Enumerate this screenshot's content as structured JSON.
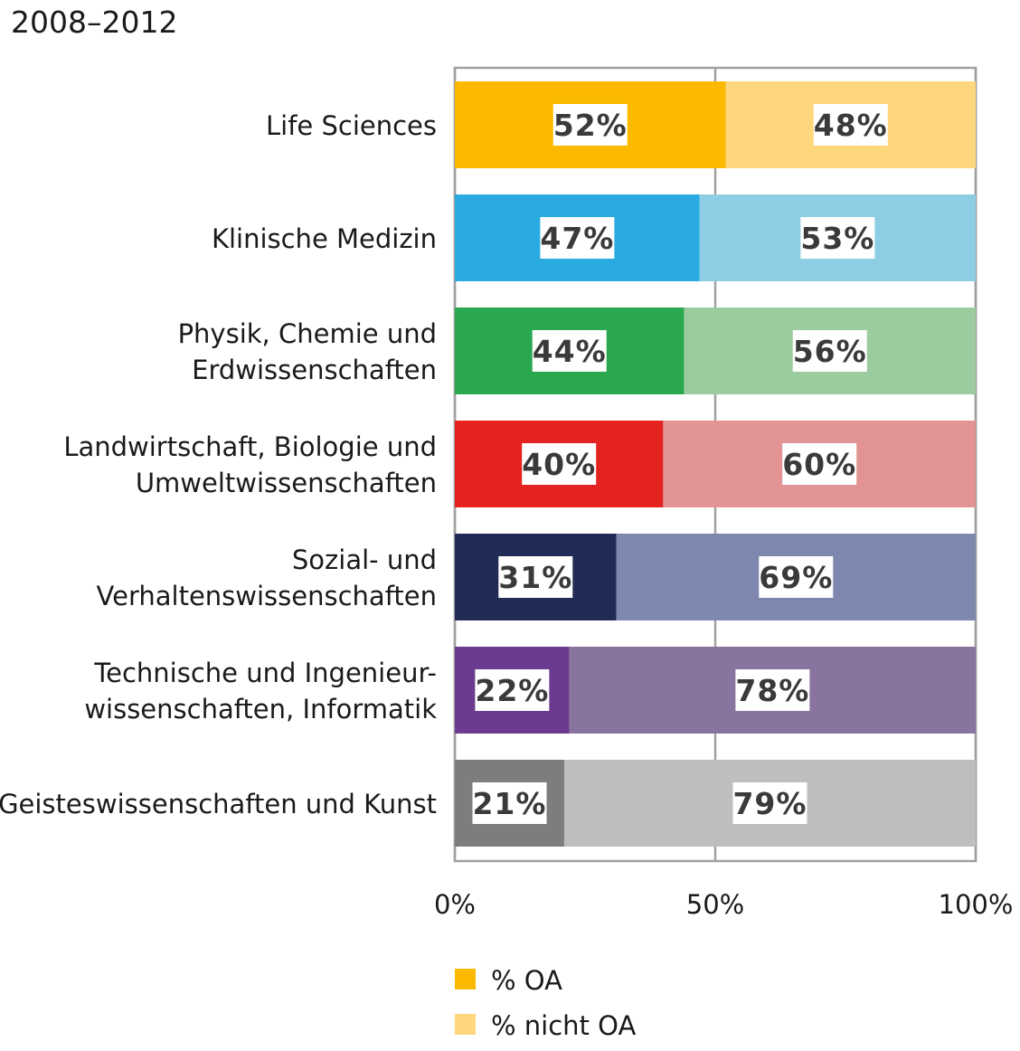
{
  "chart_data": {
    "type": "bar",
    "orientation": "horizontal",
    "stacked": true,
    "title": "2008–2012",
    "categories": [
      [
        "Life Sciences"
      ],
      [
        "Klinische Medizin"
      ],
      [
        "Physik, Chemie und",
        "Erdwissenschaften"
      ],
      [
        "Landwirtschaft, Biologie und",
        "Umweltwissenschaften"
      ],
      [
        "Sozial- und",
        "Verhaltenswissenschaften"
      ],
      [
        "Technische und Ingenieur-",
        "wissenschaften, Informatik"
      ],
      [
        "Geisteswissenschaften und Kunst"
      ]
    ],
    "series": [
      {
        "name": "% OA",
        "values": [
          52,
          47,
          44,
          40,
          31,
          22,
          21
        ],
        "labels": [
          "52%",
          "47%",
          "44%",
          "40%",
          "31%",
          "22%",
          "21%"
        ]
      },
      {
        "name": "% nicht OA",
        "values": [
          48,
          53,
          56,
          60,
          69,
          78,
          79
        ],
        "labels": [
          "48%",
          "53%",
          "56%",
          "60%",
          "69%",
          "78%",
          "79%"
        ]
      }
    ],
    "colors": {
      "oa": [
        "#FBBA00",
        "#29ABE2",
        "#2AA84F",
        "#E42320",
        "#222B55",
        "#6A3B8E",
        "#7D7D7D"
      ],
      "not_oa": [
        "#FED67B",
        "#8ECEE4",
        "#9BCC9F",
        "#E19493",
        "#7E87AE",
        "#88749E",
        "#BEBEBE"
      ],
      "legend_oa": "#FBBA00",
      "legend_not_oa": "#FED67B"
    },
    "xlim": [
      0,
      100
    ],
    "xticks": [
      0,
      50,
      100
    ],
    "xtick_labels": [
      "0%",
      "50%",
      "100%"
    ],
    "grid": true,
    "legend_position": "bottom"
  }
}
